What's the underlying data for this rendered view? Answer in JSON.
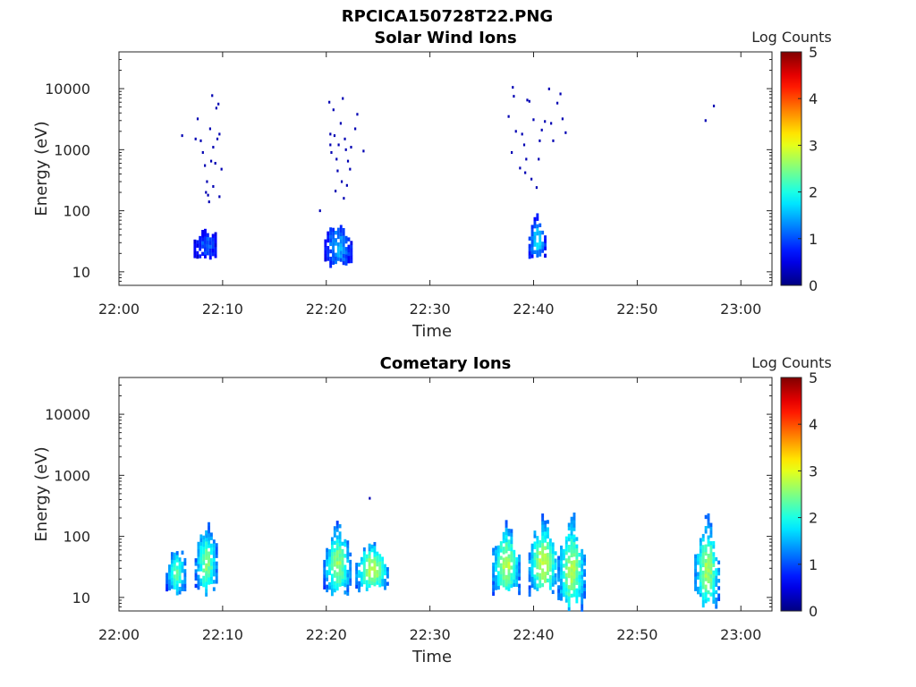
{
  "figure_title": "RPCICA150728T22.PNG",
  "chart_data": [
    {
      "type": "heatmap",
      "title": "Solar Wind Ions",
      "xlabel": "Time",
      "ylabel": "Energy (eV)",
      "x_ticks": [
        "22:00",
        "22:10",
        "22:20",
        "22:30",
        "22:40",
        "22:50",
        "23:00"
      ],
      "y_ticks": [
        10,
        100,
        1000,
        10000
      ],
      "y_scale": "log",
      "xlim": [
        "22:00",
        "23:03"
      ],
      "ylim": [
        6,
        40000
      ],
      "colorbar": {
        "label": "Log Counts",
        "ticks": [
          0,
          1,
          2,
          3,
          4,
          5
        ],
        "range": [
          0,
          5
        ],
        "colormap": "jet"
      },
      "clusters": [
        {
          "t_start": 7.2,
          "t_end": 9.4,
          "e_min": 17,
          "e_max": 62,
          "peak_log": 1.1,
          "fill": 0.85,
          "sparse": [
            [
              6.0,
              1700
            ],
            [
              7.3,
              1500
            ],
            [
              7.5,
              3200
            ],
            [
              7.8,
              1400
            ],
            [
              8.0,
              900
            ],
            [
              8.2,
              550
            ],
            [
              8.4,
              300
            ],
            [
              8.5,
              180
            ],
            [
              8.6,
              140
            ],
            [
              8.7,
              2200
            ],
            [
              8.9,
              7700
            ],
            [
              9.0,
              1100
            ],
            [
              9.0,
              250
            ],
            [
              9.2,
              600
            ],
            [
              9.3,
              4800
            ],
            [
              9.4,
              1500
            ],
            [
              9.5,
              5600
            ],
            [
              9.6,
              170
            ],
            [
              9.6,
              1800
            ],
            [
              9.8,
              480
            ],
            [
              8.3,
              200
            ],
            [
              8.8,
              650
            ]
          ]
        },
        {
          "t_start": 19.8,
          "t_end": 22.3,
          "e_min": 12,
          "e_max": 90,
          "peak_log": 1.5,
          "fill": 0.85,
          "sparse": [
            [
              19.3,
              100
            ],
            [
              20.2,
              6000
            ],
            [
              20.3,
              1800
            ],
            [
              20.3,
              1200
            ],
            [
              20.4,
              900
            ],
            [
              20.6,
              4500
            ],
            [
              20.7,
              1700
            ],
            [
              20.9,
              700
            ],
            [
              21.0,
              450
            ],
            [
              21.1,
              1200
            ],
            [
              21.3,
              2700
            ],
            [
              21.4,
              300
            ],
            [
              21.5,
              6900
            ],
            [
              21.6,
              160
            ],
            [
              21.7,
              1500
            ],
            [
              21.8,
              1000
            ],
            [
              22.0,
              650
            ],
            [
              22.2,
              480
            ],
            [
              22.3,
              1100
            ],
            [
              22.7,
              2200
            ],
            [
              22.9,
              3800
            ],
            [
              23.5,
              950
            ],
            [
              20.8,
              210
            ],
            [
              21.9,
              260
            ]
          ]
        },
        {
          "t_start": 39.5,
          "t_end": 41.0,
          "e_min": 17,
          "e_max": 100,
          "peak_log": 1.8,
          "fill": 0.8,
          "sparse": [
            [
              37.5,
              3500
            ],
            [
              37.8,
              900
            ],
            [
              37.9,
              10500
            ],
            [
              38.0,
              7500
            ],
            [
              38.2,
              2000
            ],
            [
              38.6,
              500
            ],
            [
              38.8,
              1800
            ],
            [
              39.0,
              1200
            ],
            [
              39.2,
              700
            ],
            [
              39.3,
              6500
            ],
            [
              39.5,
              6200
            ],
            [
              39.7,
              330
            ],
            [
              39.9,
              3100
            ],
            [
              40.2,
              240
            ],
            [
              40.4,
              700
            ],
            [
              40.5,
              1400
            ],
            [
              40.7,
              2100
            ],
            [
              41.0,
              2900
            ],
            [
              41.4,
              9900
            ],
            [
              41.6,
              2700
            ],
            [
              41.8,
              1400
            ],
            [
              42.2,
              5800
            ],
            [
              42.5,
              8200
            ],
            [
              42.7,
              3200
            ],
            [
              43.0,
              1900
            ],
            [
              39.1,
              420
            ]
          ]
        }
      ],
      "isolated_points": [
        [
          56.5,
          3000
        ],
        [
          57.3,
          5200
        ]
      ]
    },
    {
      "type": "heatmap",
      "title": "Cometary Ions",
      "xlabel": "Time",
      "ylabel": "Energy (eV)",
      "x_ticks": [
        "22:00",
        "22:10",
        "22:20",
        "22:30",
        "22:40",
        "22:50",
        "23:00"
      ],
      "y_ticks": [
        10,
        100,
        1000,
        10000
      ],
      "y_scale": "log",
      "xlim": [
        "22:00",
        "23:03"
      ],
      "ylim": [
        6,
        40000
      ],
      "colorbar": {
        "label": "Log Counts",
        "ticks": [
          0,
          1,
          2,
          3,
          4,
          5
        ],
        "range": [
          0,
          5
        ],
        "colormap": "jet"
      },
      "clusters": [
        {
          "t_start": 4.5,
          "t_end": 6.4,
          "e_min": 11,
          "e_max": 90,
          "peak_log": 2.3,
          "fill": 0.85,
          "sparse": []
        },
        {
          "t_start": 7.3,
          "t_end": 9.4,
          "e_min": 11,
          "e_max": 240,
          "peak_log": 2.5,
          "fill": 0.85,
          "sparse": []
        },
        {
          "t_start": 19.7,
          "t_end": 22.3,
          "e_min": 11,
          "e_max": 230,
          "peak_log": 2.6,
          "fill": 0.85,
          "sparse": []
        },
        {
          "t_start": 22.8,
          "t_end": 25.8,
          "e_min": 13,
          "e_max": 100,
          "peak_log": 2.9,
          "fill": 0.85,
          "sparse": [
            [
              24.1,
              420
            ]
          ]
        },
        {
          "t_start": 36.0,
          "t_end": 38.5,
          "e_min": 11,
          "e_max": 220,
          "peak_log": 2.8,
          "fill": 0.85,
          "sparse": []
        },
        {
          "t_start": 39.5,
          "t_end": 42.2,
          "e_min": 11,
          "e_max": 260,
          "peak_log": 2.9,
          "fill": 0.85,
          "sparse": []
        },
        {
          "t_start": 42.3,
          "t_end": 44.8,
          "e_min": 6,
          "e_max": 340,
          "peak_log": 2.7,
          "fill": 0.85,
          "sparse": []
        },
        {
          "t_start": 55.5,
          "t_end": 57.8,
          "e_min": 7,
          "e_max": 290,
          "peak_log": 2.7,
          "fill": 0.85,
          "sparse": []
        }
      ],
      "isolated_points": []
    }
  ]
}
